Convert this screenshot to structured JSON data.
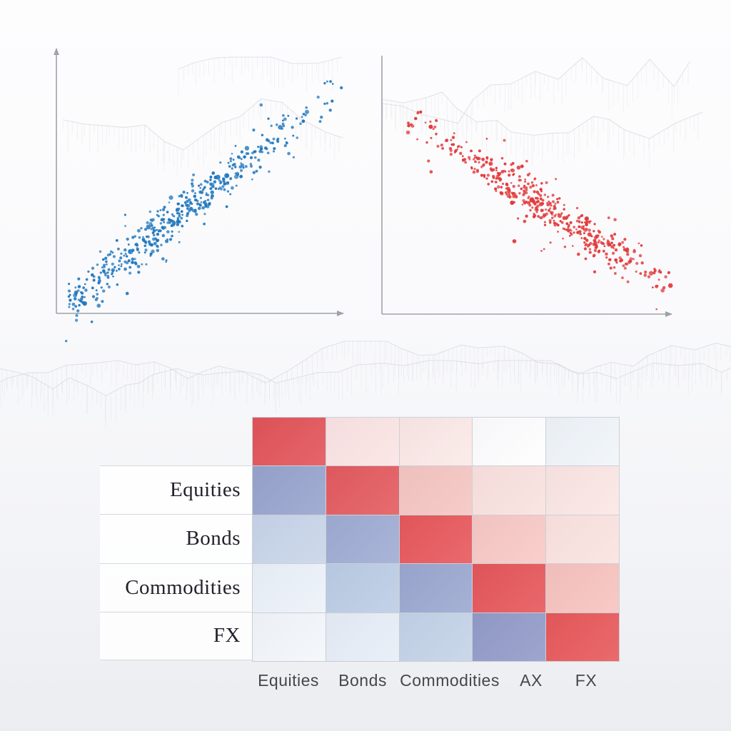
{
  "page": {
    "background_top": "#fdfdfe",
    "background_bottom": "#ecedf1",
    "axis_color": "#a0a2aa",
    "decoration_line_color": "#ccd0d8"
  },
  "chart_data": [
    {
      "id": "scatter-positive",
      "type": "scatter",
      "title": "",
      "xlabel": "",
      "ylabel": "",
      "tick_labels": "none",
      "legend": "none",
      "axes": {
        "x_arrow": true,
        "y_arrow": true,
        "ticks": false,
        "grid": false
      },
      "series": [
        {
          "name": "positive correlation cloud",
          "color": "#2177BD",
          "n_points": 470,
          "trend": "positive",
          "r_estimate": 0.9,
          "x_range_norm": [
            0.0,
            1.0
          ],
          "y_range_norm": [
            0.0,
            1.0
          ],
          "relation": "y ~ x + noise",
          "noise_sigma_norm": 0.05
        }
      ]
    },
    {
      "id": "scatter-negative",
      "type": "scatter",
      "title": "",
      "xlabel": "",
      "ylabel": "",
      "tick_labels": "none",
      "legend": "none",
      "axes": {
        "x_arrow": true,
        "y_arrow": false,
        "ticks": false,
        "grid": false
      },
      "series": [
        {
          "name": "negative correlation cloud",
          "color": "#E23A3B",
          "n_points": 470,
          "trend": "negative",
          "r_estimate": -0.9,
          "x_range_norm": [
            0.0,
            1.0
          ],
          "y_range_norm": [
            0.0,
            1.0
          ],
          "relation": "y ~ -x + noise",
          "noise_sigma_norm": 0.05
        }
      ]
    },
    {
      "id": "correlation-heatmap",
      "type": "heatmap",
      "title": "",
      "values_shown": false,
      "legend": "none",
      "row_labels": [
        "",
        "Equities",
        "Bonds",
        "Commodities",
        "FX"
      ],
      "col_labels": [
        "Equities",
        "Bonds",
        "Commodities",
        "AX",
        "FX"
      ],
      "cell_colors": [
        [
          "#E25459",
          "#FBE4E4",
          "#FBE9E7",
          "#FEFEFF",
          "#F0F5FA"
        ],
        [
          "#98A4CE",
          "#E45B5F",
          "#F5C6C2",
          "#FAE2DF",
          "#FBE7E4"
        ],
        [
          "#C8D5E9",
          "#9FACD3",
          "#E8585C",
          "#F8C9C5",
          "#FBE3E0"
        ],
        [
          "#ECF2F9",
          "#BCCDE5",
          "#9BA8D0",
          "#E6575A",
          "#F7C3BF"
        ],
        [
          "#F3F7FB",
          "#E7EEF7",
          "#C4D3E8",
          "#939CC9",
          "#E8595B"
        ]
      ],
      "color_semantics": {
        "strong_positive": "#E45B5F",
        "moderate_negative": "#98A4CE",
        "near_zero": "#FEFEFF"
      }
    }
  ],
  "decorations": [
    {
      "name": "sparkline-backdrop-left-panel"
    },
    {
      "name": "sparkline-backdrop-right-panel"
    },
    {
      "name": "sparkline-band-middle"
    }
  ]
}
